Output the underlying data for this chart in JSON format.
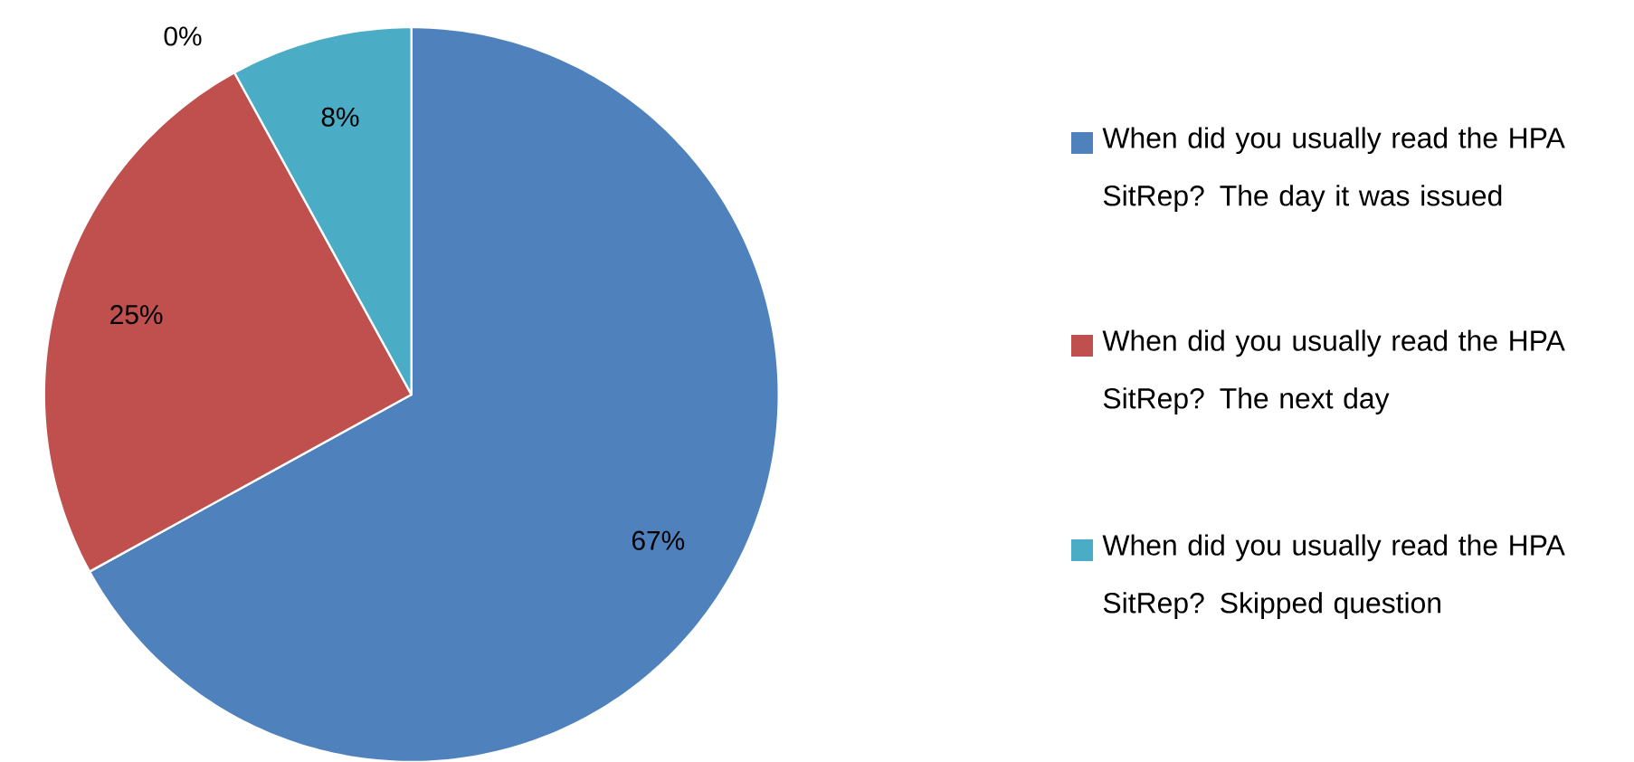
{
  "chart_data": {
    "type": "pie",
    "categories": [
      "When did you usually read the HPA SitRep?  The day it was issued",
      "When did you usually read the HPA SitRep?  The next day",
      "When did you usually read the HPA SitRep?  Skipped question"
    ],
    "values": [
      67,
      25,
      8
    ],
    "value_labels": [
      "67%",
      "25%",
      "8%"
    ],
    "colors": [
      "#4f81bd",
      "#c0504d",
      "#4bacc6"
    ],
    "annotations": [
      "0%"
    ],
    "legend": "right"
  }
}
